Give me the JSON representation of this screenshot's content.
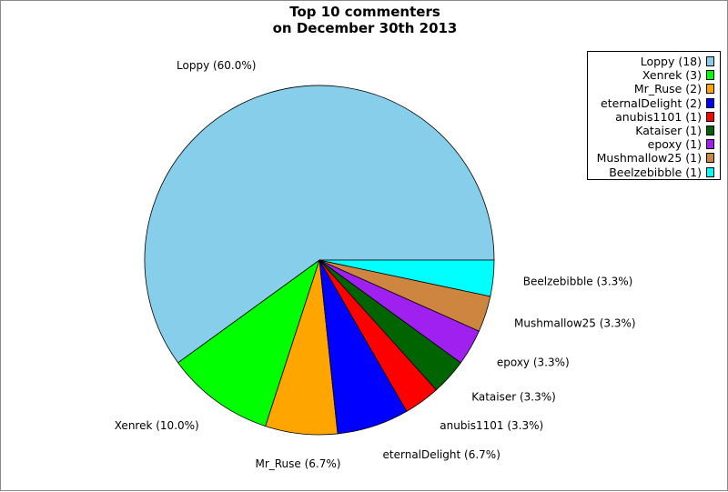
{
  "chart_data": {
    "type": "pie",
    "title": [
      "Top 10 commenters",
      "on December 30th 2013"
    ],
    "slices": [
      {
        "name": "Loppy",
        "count": 18,
        "percent": 60.0,
        "color": "#87CEEB",
        "legend_label": "Loppy (18)",
        "slice_label": "Loppy (60.0%)"
      },
      {
        "name": "Xenrek",
        "count": 3,
        "percent": 10.0,
        "color": "#00FF00",
        "legend_label": "Xenrek (3)",
        "slice_label": "Xenrek (10.0%)"
      },
      {
        "name": "Mr_Ruse",
        "count": 2,
        "percent": 6.7,
        "color": "#FFA500",
        "legend_label": "Mr_Ruse (2)",
        "slice_label": "Mr_Ruse (6.7%)"
      },
      {
        "name": "eternalDelight",
        "count": 2,
        "percent": 6.7,
        "color": "#0000FF",
        "legend_label": "eternalDelight (2)",
        "slice_label": "eternalDelight (6.7%)"
      },
      {
        "name": "anubis1101",
        "count": 1,
        "percent": 3.3,
        "color": "#FF0000",
        "legend_label": "anubis1101 (1)",
        "slice_label": "anubis1101 (3.3%)"
      },
      {
        "name": "Kataiser",
        "count": 1,
        "percent": 3.3,
        "color": "#006400",
        "legend_label": "Kataiser (1)",
        "slice_label": "Kataiser (3.3%)"
      },
      {
        "name": "epoxy",
        "count": 1,
        "percent": 3.3,
        "color": "#A020F0",
        "legend_label": "epoxy (1)",
        "slice_label": "epoxy (3.3%)"
      },
      {
        "name": "Mushmallow25",
        "count": 1,
        "percent": 3.3,
        "color": "#CD853F",
        "legend_label": "Mushmallow25 (1)",
        "slice_label": "Mushmallow25 (3.3%)"
      },
      {
        "name": "Beelzebibble",
        "count": 1,
        "percent": 3.3,
        "color": "#00FFFF",
        "legend_label": "Beelzebibble (1)",
        "slice_label": "Beelzebibble (3.3%)"
      }
    ],
    "legend_position": "top-right"
  }
}
